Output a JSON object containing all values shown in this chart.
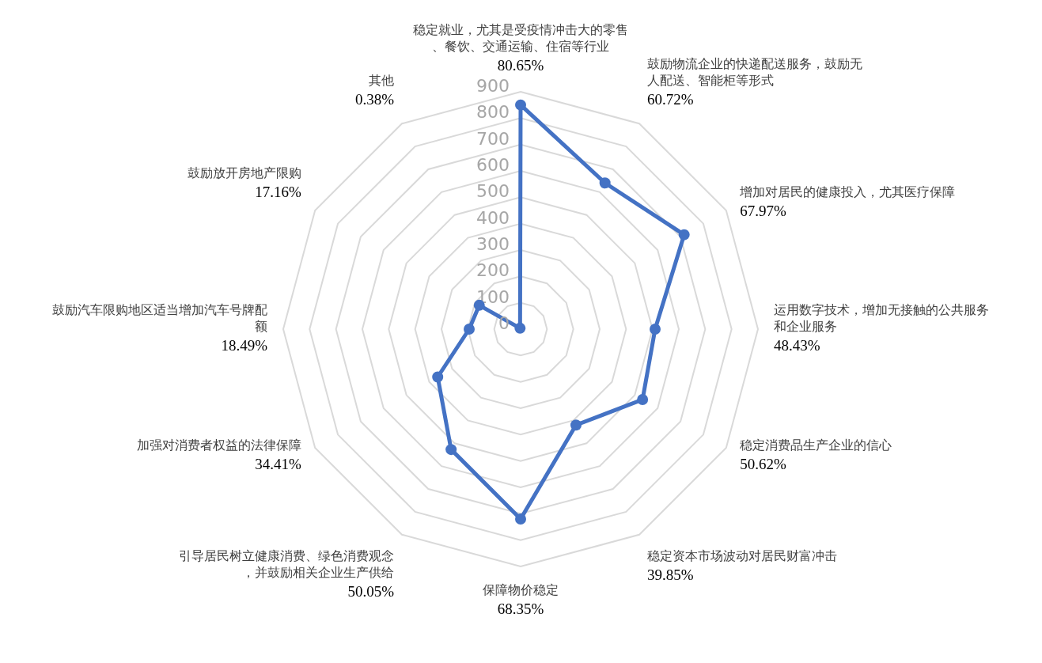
{
  "chart_data": {
    "type": "radar",
    "categories": [
      "稳定就业，尤其是受疫情冲击大的零售、餐饮、交通运输、住宿等行业",
      "鼓励物流企业的快递配送服务，鼓励无人配送、智能柜等形式",
      "增加对居民的健康投入，尤其医疗保障",
      "运用数字技术，增加无接触的公共服务和企业服务",
      "稳定消费品生产企业的信心",
      "稳定资本市场波动对居民财富冲击",
      "保障物价稳定",
      "引导居民树立健康消费、绿色消费观念，并鼓励相关企业生产供给",
      "加强对消费者权益的法律保障",
      "鼓励汽车限购地区适当增加汽车号牌配额",
      "鼓励放开房地产限购",
      "其他"
    ],
    "series": [
      {
        "color": "#4472c4",
        "values": [
          850,
          640,
          716,
          510,
          534,
          420,
          720,
          527,
          363,
          195,
          181,
          4
        ]
      }
    ],
    "annotations": [
      "80.65%",
      "60.72%",
      "67.97%",
      "48.43%",
      "50.62%",
      "39.85%",
      "68.35%",
      "50.05%",
      "34.41%",
      "18.49%",
      "17.16%",
      "0.38%"
    ],
    "ylim": [
      0,
      900
    ],
    "yticks": [
      0,
      100,
      200,
      300,
      400,
      500,
      600,
      700,
      800,
      900
    ],
    "grid": true,
    "marker": "circle"
  }
}
